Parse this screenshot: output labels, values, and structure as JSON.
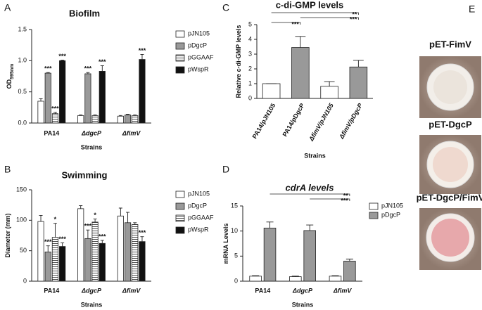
{
  "chart_data": [
    {
      "type": "bar",
      "panel_label": "A",
      "title": "Biofilm",
      "y_label": "OD",
      "y_label_subscript": "595nm",
      "x_label": "Strains",
      "categories": [
        "PA14",
        "ΔdgcP",
        "ΔfimV"
      ],
      "series": [
        {
          "name": "pJN105",
          "color": "#ffffff",
          "values": [
            0.35,
            0.12,
            0.11
          ],
          "errors": [
            0.04,
            0.01,
            0.01
          ],
          "significance": [
            null,
            null,
            null
          ]
        },
        {
          "name": "pDgcP",
          "color": "#999999",
          "values": [
            0.8,
            0.79,
            0.13
          ],
          "errors": [
            0.01,
            0.02,
            0.01
          ],
          "significance": [
            "***",
            "***",
            null
          ]
        },
        {
          "name": "pGGAAF",
          "color": "#ffffff",
          "pattern": "horizontal-stripes",
          "values": [
            0.15,
            0.12,
            0.12
          ],
          "errors": [
            0.02,
            0.01,
            0.01
          ],
          "significance": [
            "***",
            null,
            null
          ]
        },
        {
          "name": "pWspR",
          "color": "#111111",
          "values": [
            1.0,
            0.83,
            1.02
          ],
          "errors": [
            0.01,
            0.09,
            0.08
          ],
          "significance": [
            "***",
            "***",
            "***"
          ]
        }
      ],
      "ylim": [
        0,
        1.5
      ],
      "yticks": [
        {
          "value": 0,
          "label": "0.0"
        },
        0.5,
        {
          "value": 1,
          "label": "1.0"
        },
        1.5
      ]
    },
    {
      "type": "bar",
      "panel_label": "B",
      "title": "Swimming",
      "y_label": "Diameter (mm)",
      "x_label": "Strains",
      "categories": [
        "PA14",
        "ΔdgcP",
        "ΔfimV"
      ],
      "series": [
        {
          "name": "pJN105",
          "color": "#ffffff",
          "values": [
            98,
            119,
            107
          ],
          "errors": [
            10,
            5,
            13
          ],
          "significance": [
            null,
            null,
            null
          ]
        },
        {
          "name": "pDgcP",
          "color": "#999999",
          "values": [
            48,
            70,
            96
          ],
          "errors": [
            10,
            14,
            17
          ],
          "significance": [
            "***",
            "***",
            null
          ]
        },
        {
          "name": "pGGAAF",
          "color": "#ffffff",
          "pattern": "horizontal-stripes",
          "values": [
            72,
            97,
            93
          ],
          "errors": [
            23,
            5,
            3
          ],
          "significance": [
            "*",
            "*",
            null
          ]
        },
        {
          "name": "pWspR",
          "color": "#111111",
          "values": [
            57,
            62,
            65
          ],
          "errors": [
            6,
            5,
            8
          ],
          "significance": [
            "***",
            "***",
            "***"
          ]
        }
      ],
      "ylim": [
        0,
        150
      ],
      "yticks": [
        0,
        50,
        100,
        150
      ]
    },
    {
      "type": "bar",
      "panel_label": "C",
      "title": "c-di-GMP levels",
      "y_label": "Relative c-di-GMP levels",
      "x_label": "Strains",
      "categories": [
        "PA14/pJN105",
        "PA14/pDgcP",
        "ΔfimV/pJN105",
        "ΔfimV/pDgcP"
      ],
      "values": [
        1.0,
        3.45,
        0.82,
        2.13
      ],
      "errors": [
        0,
        0.75,
        0.32,
        0.45
      ],
      "colors": [
        "#ffffff",
        "#999999",
        "#ffffff",
        "#999999"
      ],
      "comparisons": [
        {
          "between": [
            "PA14/pJN105",
            "ΔfimV/pDgcP"
          ],
          "label": "**"
        },
        {
          "between": [
            "PA14/pDgcP",
            "ΔfimV/pDgcP"
          ],
          "label": "***"
        },
        {
          "between": [
            "PA14/pJN105",
            "PA14/pDgcP"
          ],
          "label": "***"
        }
      ],
      "ylim": [
        0,
        5
      ],
      "yticks": [
        0,
        1,
        2,
        3,
        4,
        5
      ]
    },
    {
      "type": "bar",
      "panel_label": "D",
      "title": "cdrA levels",
      "title_italic": true,
      "y_label": "mRNA Levels",
      "x_label": "Strains",
      "categories": [
        "PA14",
        "ΔdgcP",
        "ΔfimV"
      ],
      "series": [
        {
          "name": "pJN105",
          "color": "#ffffff",
          "values": [
            1.0,
            0.9,
            1.0
          ],
          "errors": [
            0.1,
            0.1,
            0.1
          ]
        },
        {
          "name": "pDgcP",
          "color": "#999999",
          "values": [
            10.6,
            10.1,
            4.0
          ],
          "errors": [
            1.2,
            1.1,
            0.4
          ]
        }
      ],
      "comparisons": [
        {
          "between": [
            "PA14",
            "ΔfimV"
          ],
          "label": "**"
        },
        {
          "between": [
            "ΔdgcP",
            "ΔfimV"
          ],
          "label": "***"
        }
      ],
      "ylim": [
        0,
        15
      ],
      "yticks": [
        0,
        5,
        10,
        15
      ]
    }
  ],
  "panel_e": {
    "panel_label": "E",
    "images": [
      {
        "label": "pET-FimV"
      },
      {
        "label": "pET-DgcP"
      },
      {
        "label": "pET-DgcP/FimV"
      }
    ]
  }
}
